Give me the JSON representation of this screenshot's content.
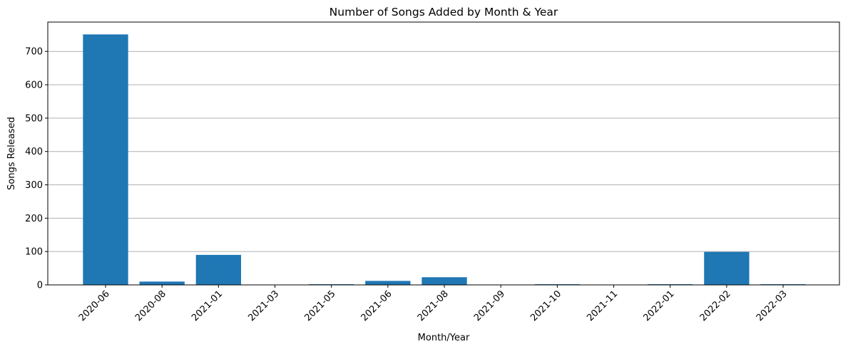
{
  "chart_data": {
    "type": "bar",
    "title": "Number of Songs Added by Month & Year",
    "xlabel": "Month/Year",
    "ylabel": "Songs Released",
    "categories": [
      "2020-06",
      "2020-08",
      "2021-01",
      "2021-03",
      "2021-05",
      "2021-06",
      "2021-08",
      "2021-09",
      "2021-10",
      "2021-11",
      "2022-01",
      "2022-02",
      "2022-03"
    ],
    "values": [
      751,
      10,
      90,
      1,
      2,
      12,
      23,
      1,
      2,
      1,
      2,
      99,
      2
    ],
    "yticks": [
      0,
      100,
      200,
      300,
      400,
      500,
      600,
      700
    ],
    "ylim": [
      0,
      788
    ],
    "grid": "y-axis only",
    "bar_color": "#1f77b4",
    "grid_color": "#b0b0b0"
  }
}
